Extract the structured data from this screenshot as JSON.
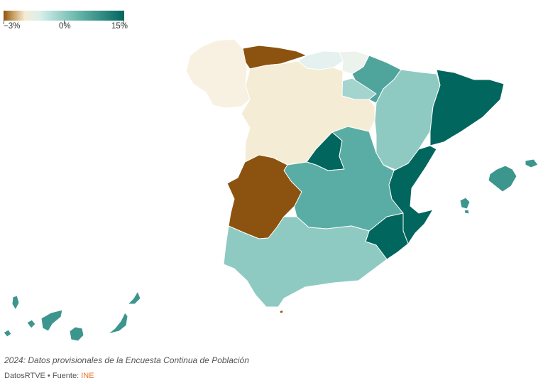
{
  "legend": {
    "min_label": "−3%",
    "zero_label": "0%",
    "max_label": "15%",
    "scale_min": -3,
    "scale_max": 15,
    "colors": [
      "#8c5310",
      "#f5ecd5",
      "#01665e"
    ]
  },
  "footer": {
    "note": "2024: Datos provisionales de la Encuesta Continua de Población",
    "credit": "DatosRTVE",
    "separator": " • ",
    "source_prefix": "Fuente: ",
    "source_name": "INE"
  },
  "regions": [
    {
      "name": "Galicia",
      "color": "#f8f1e2"
    },
    {
      "name": "Asturias",
      "color": "#8c5310"
    },
    {
      "name": "Cantabria",
      "color": "#e4f1ee"
    },
    {
      "name": "País Vasco",
      "color": "#ecf3ec"
    },
    {
      "name": "Navarra",
      "color": "#4fa49c"
    },
    {
      "name": "La Rioja",
      "color": "#a3d4cd"
    },
    {
      "name": "Aragón",
      "color": "#8ecac2"
    },
    {
      "name": "Cataluña",
      "color": "#01665e"
    },
    {
      "name": "Castilla y León",
      "color": "#f5ecd5"
    },
    {
      "name": "Madrid",
      "color": "#01665e"
    },
    {
      "name": "Castilla-La Mancha",
      "color": "#5aada4"
    },
    {
      "name": "Extremadura",
      "color": "#8c5310"
    },
    {
      "name": "Comunitat Valenciana",
      "color": "#01665e"
    },
    {
      "name": "Región de Murcia",
      "color": "#01665e"
    },
    {
      "name": "Andalucía",
      "color": "#8ecac2"
    },
    {
      "name": "Illes Balears",
      "color": "#3c968d"
    },
    {
      "name": "Canarias",
      "color": "#3c968d"
    },
    {
      "name": "Ceuta",
      "color": "#8c5310"
    }
  ]
}
